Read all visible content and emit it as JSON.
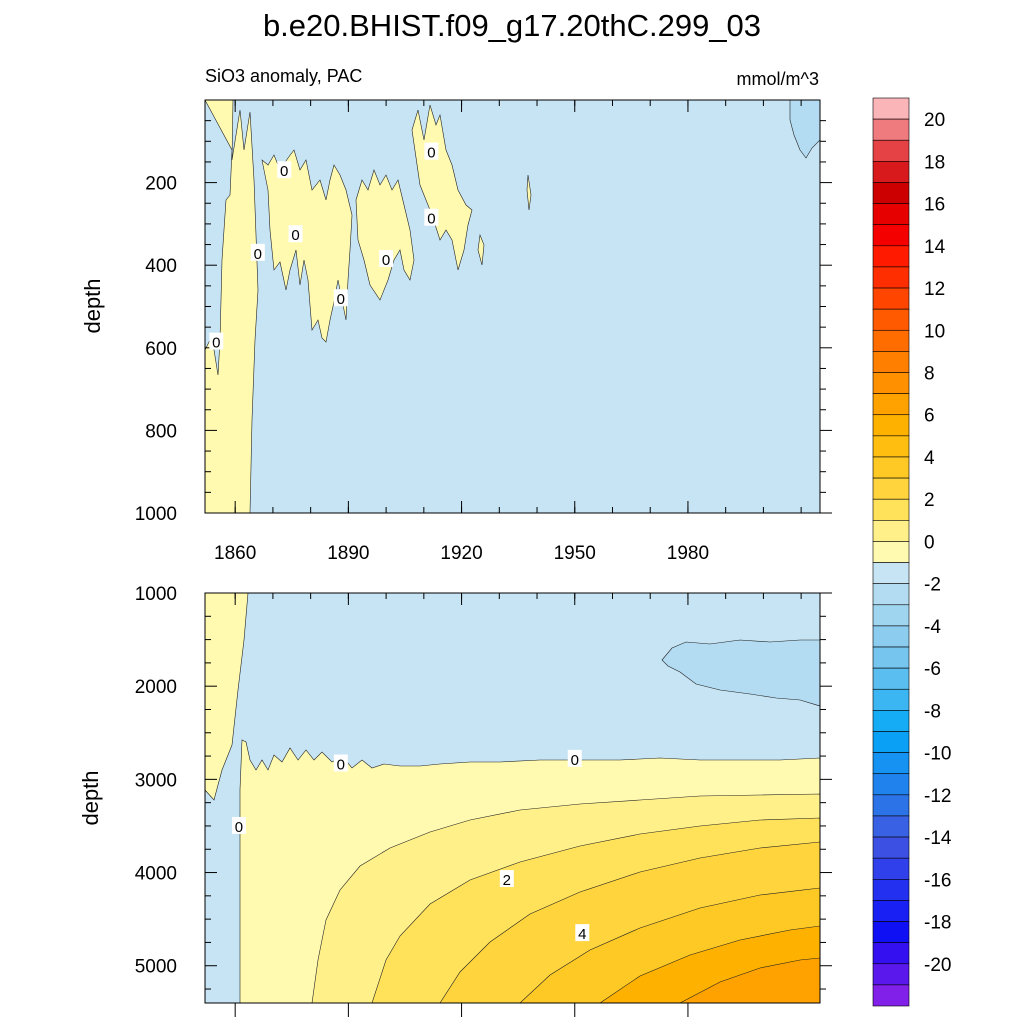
{
  "title": "b.e20.BHIST.f09_g17.20thC.299_03",
  "subtitle_left": "SiO3 anomaly, PAC",
  "units": "mmol/m^3",
  "chart_data": [
    {
      "type": "contour",
      "panel": "upper",
      "xlabel": "",
      "ylabel": "depth",
      "xlim": [
        1852,
        2015
      ],
      "ylim": [
        1000,
        0
      ],
      "x_ticks": [
        1860,
        1890,
        1920,
        1950,
        1980
      ],
      "y_ticks": [
        200,
        400,
        600,
        800,
        1000
      ],
      "contour_labels": [
        {
          "text": "0",
          "x": 1855,
          "y": 585
        },
        {
          "text": "0",
          "x": 1866,
          "y": 370
        },
        {
          "text": "0",
          "x": 1873,
          "y": 170
        },
        {
          "text": "0",
          "x": 1876,
          "y": 325
        },
        {
          "text": "0",
          "x": 1888,
          "y": 480
        },
        {
          "text": "0",
          "x": 1900,
          "y": 385
        },
        {
          "text": "0",
          "x": 1912,
          "y": 125
        },
        {
          "text": "0",
          "x": 1912,
          "y": 285
        }
      ]
    },
    {
      "type": "contour",
      "panel": "lower",
      "xlabel": "",
      "ylabel": "depth",
      "xlim": [
        1852,
        2015
      ],
      "ylim": [
        5400,
        1000
      ],
      "y_ticks": [
        1000,
        2000,
        3000,
        4000,
        5000
      ],
      "contour_labels": [
        {
          "text": "0",
          "x": 1861,
          "y": 3500
        },
        {
          "text": "0",
          "x": 1888,
          "y": 2830
        },
        {
          "text": "0",
          "x": 1950,
          "y": 2780
        },
        {
          "text": "2",
          "x": 1932,
          "y": 4070
        },
        {
          "text": "4",
          "x": 1952,
          "y": 4650
        }
      ]
    }
  ],
  "colorbar": {
    "labels": [
      "20",
      "18",
      "16",
      "14",
      "12",
      "10",
      "8",
      "6",
      "4",
      "2",
      "0",
      "-2",
      "-4",
      "-6",
      "-8",
      "-10",
      "-12",
      "-14",
      "-16",
      "-18",
      "-20"
    ],
    "colors": [
      "#f9b5b8",
      "#f07b7f",
      "#e54246",
      "#d81a1c",
      "#cc0000",
      "#e60000",
      "#f50000",
      "#ff1a00",
      "#ff2e00",
      "#ff4500",
      "#ff5a00",
      "#ff6d00",
      "#ff8000",
      "#ff9100",
      "#ffa200",
      "#ffb100",
      "#ffbe10",
      "#ffc925",
      "#ffd43c",
      "#ffe25a",
      "#fff08a",
      "#fffab0",
      "#c6e4f4",
      "#b3dcf2",
      "#a0d5f0",
      "#8ccdef",
      "#75c5ef",
      "#5bbef0",
      "#3cb6f3",
      "#16acf5",
      "#0aa0f5",
      "#1592f2",
      "#2083ed",
      "#2c73e8",
      "#3862e3",
      "#3c51e4",
      "#3040ea",
      "#2430ef",
      "#1820f3",
      "#1010f5",
      "#3410f0",
      "#5a18ec",
      "#8020e8"
    ]
  },
  "colors": {
    "negative_fill": "#c6e4f4",
    "negative2_fill": "#b3dcf2",
    "positive_levels": [
      "#fffab0",
      "#fff08a",
      "#ffe25a",
      "#ffd43c",
      "#ffc925",
      "#ffb100",
      "#ffa200"
    ]
  }
}
